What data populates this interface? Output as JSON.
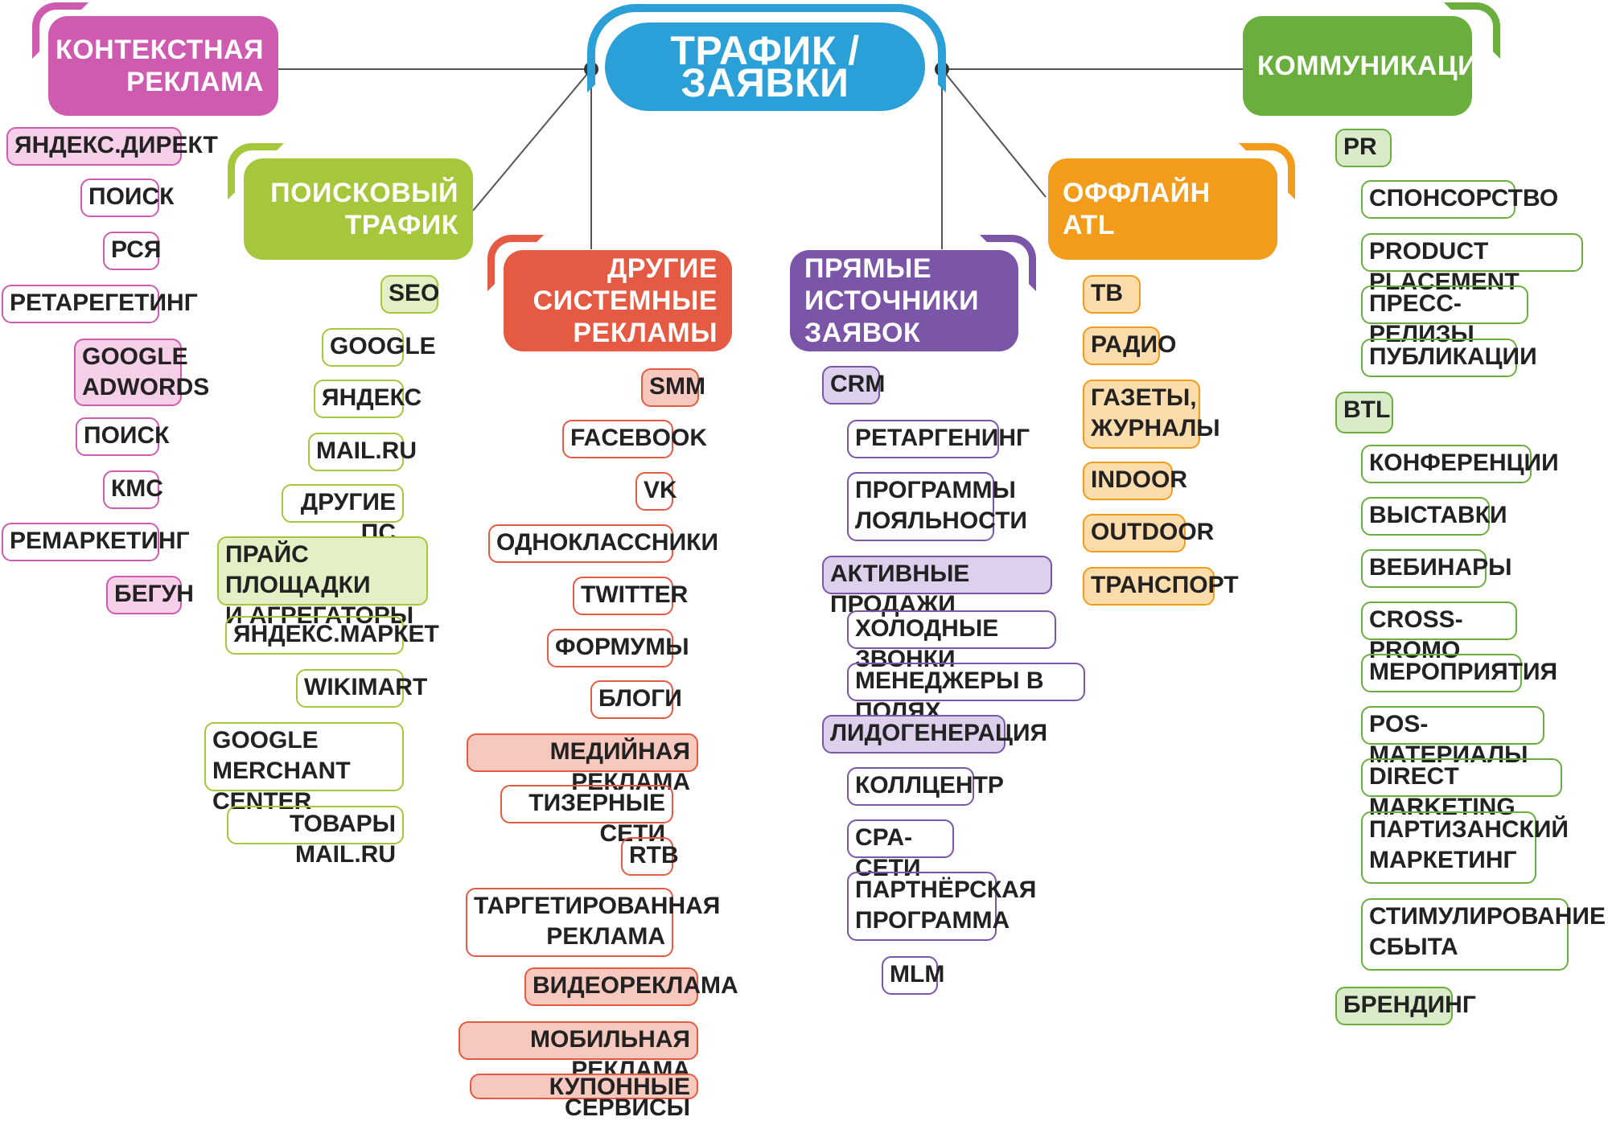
{
  "root": {
    "title": "ТРАФИК / ЗАЯВКИ",
    "color": "#2a9fd8"
  },
  "categories": {
    "context": {
      "title": "КОНТЕКСТНАЯ\nРЕКЛАМА",
      "color": "#cf5bb0",
      "fill": "#f6cfe8",
      "items": [
        "ЯНДЕКС.ДИРЕКТ",
        "ПОИСК",
        "РСЯ",
        "РЕТАРЕГЕТИНГ",
        "GOOGLE\nADWORDS",
        "ПОИСК",
        "КМС",
        "РЕМАРКЕТИНГ",
        "БЕГУН"
      ]
    },
    "search": {
      "title": "ПОИСКОВЫЙ\nТРАФИК",
      "color": "#a6c63c",
      "fill": "#e3efc4",
      "items": [
        "SEO",
        "GOOGLE",
        "ЯНДЕКС",
        "MAIL.RU",
        "ДРУГИЕ ПС",
        "ПРАЙС ПЛОЩАДКИ\nИ АГРЕГАТОРЫ",
        "ЯНДЕКС.МАРКЕТ",
        "WIKIMART",
        "GOOGLE MERCHANT\nCENTER",
        "ТОВАРЫ MAIL.RU"
      ]
    },
    "other": {
      "title": "ДРУГИЕ СИСТЕМНЫЕ\nРЕКЛАМЫ",
      "color": "#e55a43",
      "fill": "#f6c8be",
      "items": [
        "SMM",
        "FACEBOOK",
        "VK",
        "ОДНОКЛАССНИКИ",
        "TWITTER",
        "ФОРМУМЫ",
        "БЛОГИ",
        "МЕДИЙНАЯ РЕКЛАМА",
        "ТИЗЕРНЫЕ СЕТИ",
        "RTB",
        "ТАРГЕТИРОВАННАЯ\nРЕКЛАМА",
        "ВИДЕОРЕКЛАМА",
        "МОБИЛЬНАЯ РЕКЛАМА",
        "КУПОННЫЕ СЕРВИСЫ"
      ]
    },
    "direct": {
      "title": "ПРЯМЫЕ ИСТОЧНИКИ\nЗАЯВОК",
      "color": "#7a55a8",
      "fill": "#ddd0ec",
      "items": [
        "CRM",
        "РЕТАРГЕНИНГ",
        "ПРОГРАММЫ\nЛОЯЛЬНОСТИ",
        "АКТИВНЫЕ ПРОДАЖИ",
        "ХОЛОДНЫЕ ЗВОНКИ",
        "МЕНЕДЖЕРЫ В ПОЛЯХ",
        "ЛИДОГЕНЕРАЦИЯ",
        "КОЛЛЦЕНТР",
        "CPA-СЕТИ",
        "ПАРТНЁРСКАЯ\nПРОГРАММА",
        "MLM"
      ]
    },
    "offline": {
      "title": "ОФФЛАЙН\nATL",
      "color": "#f39c1c",
      "fill": "#fddcac",
      "items": [
        "ТВ",
        "РАДИО",
        "ГАЗЕТЫ,\nЖУРНАЛЫ",
        "INDOOR",
        "OUTDOOR",
        "ТРАНСПОРТ"
      ]
    },
    "comm": {
      "title": "КОММУНИКАЦИИ",
      "color": "#6aae3e",
      "fill": "#d9ebc8",
      "items": [
        "PR",
        "СПОНСОРСТВО",
        "PRODUCT PLACEMENT",
        "ПРЕСС-РЕЛИЗЫ",
        "ПУБЛИКАЦИИ",
        "BTL",
        "КОНФЕРЕНЦИИ",
        "ВЫСТАВКИ",
        "ВЕБИНАРЫ",
        "CROSS-PROMO",
        "МЕРОПРИЯТИЯ",
        "POS-МАТЕРИАЛЫ",
        "DIRECT MARKETING",
        "ПАРТИЗАНСКИЙ\nМАРКЕТИНГ",
        "СТИМУЛИРОВАНИЕ\nСБЫТА",
        "БРЕНДИНГ"
      ]
    }
  }
}
